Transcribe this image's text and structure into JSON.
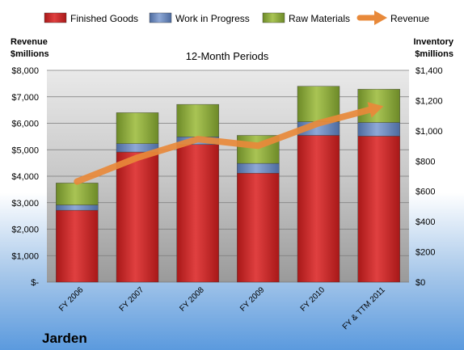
{
  "chart_data": {
    "type": "bar",
    "stacked": true,
    "dual_axis": true,
    "title": "12-Month Periods",
    "company": "Jarden",
    "left_axis_title": [
      "Revenue",
      "$millions"
    ],
    "right_axis_title": [
      "Inventory",
      "$millions"
    ],
    "categories": [
      "FY 2006",
      "FY 2007",
      "FY 2008",
      "FY 2009",
      "FY 2010",
      "FY & TTM 2011"
    ],
    "left_ticks": [
      "$-",
      "$1,000",
      "$2,000",
      "$3,000",
      "$4,000",
      "$5,000",
      "$6,000",
      "$7,000",
      "$8,000"
    ],
    "right_ticks": [
      "$0",
      "$200",
      "$400",
      "$600",
      "$800",
      "$1,000",
      "$1,200",
      "$1,400"
    ],
    "left_ylim": [
      0,
      8000
    ],
    "right_ylim": [
      0,
      1400
    ],
    "legend_position": "top",
    "grid": true,
    "series": [
      {
        "name": "Finished Goods",
        "type": "bar",
        "axis": "right",
        "color": "#cc2a2a",
        "values": [
          475,
          860,
          910,
          720,
          970,
          965
        ]
      },
      {
        "name": "Work in Progress",
        "type": "bar",
        "axis": "right",
        "color": "#6d8bc0",
        "values": [
          35,
          55,
          50,
          65,
          90,
          90
        ]
      },
      {
        "name": "Raw Materials",
        "type": "bar",
        "axis": "right",
        "color": "#8faa3c",
        "values": [
          145,
          205,
          215,
          185,
          235,
          220
        ]
      },
      {
        "name": "Revenue",
        "type": "line",
        "axis": "left",
        "color": "#e8893a",
        "values": [
          3800,
          4700,
          5400,
          5150,
          6000,
          6600
        ]
      }
    ]
  }
}
